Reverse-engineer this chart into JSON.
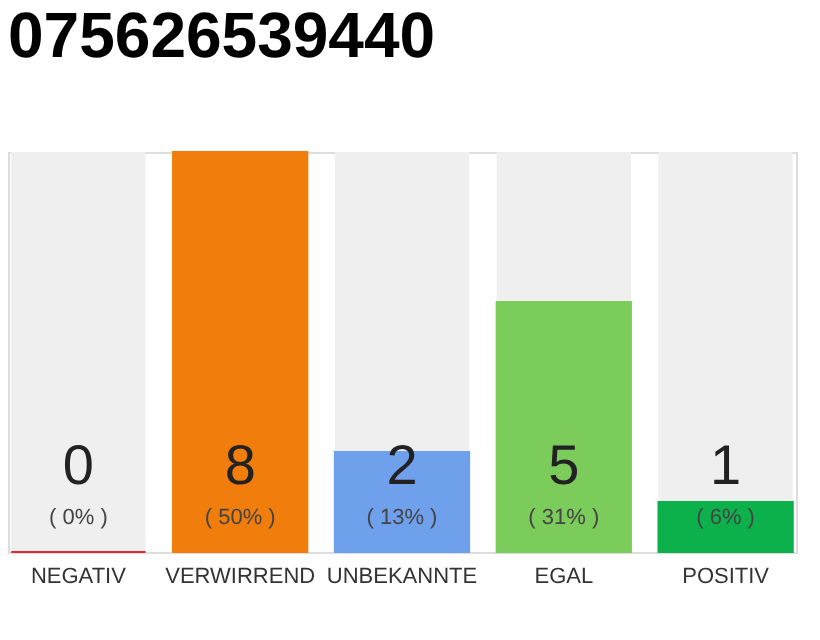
{
  "chart_data": {
    "type": "bar",
    "title": "075626539440",
    "categories": [
      "NEGATIV",
      "VERWIRREND",
      "UNBEKANNTE",
      "EGAL",
      "POSITIV"
    ],
    "values": [
      0,
      8,
      2,
      5,
      1
    ],
    "colors": [
      "#e0283c",
      "#f07d0c",
      "#6ea0ec",
      "#7ccc5c",
      "#0db14b"
    ],
    "tick_labels": "x",
    "grid": false,
    "data_labels": true,
    "annotations": [
      "( 0% )",
      "( 50% )",
      "( 13% )",
      "( 31% )",
      "( 6% )"
    ]
  }
}
